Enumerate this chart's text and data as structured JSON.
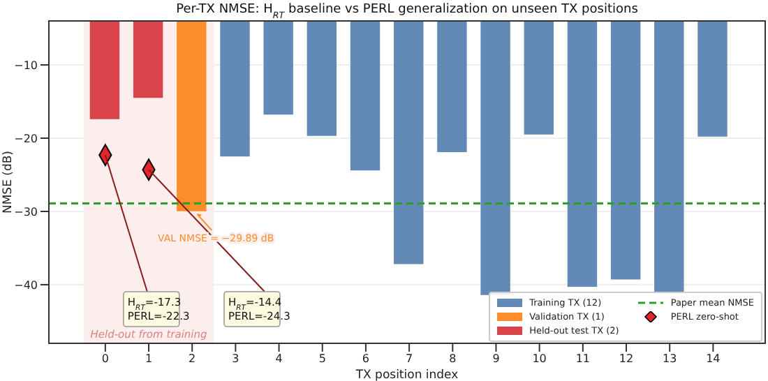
{
  "chart_data": {
    "type": "bar",
    "title": "Per-TX NMSE: H$_{RT}$ baseline vs PERL generalization on unseen TX positions",
    "xlabel": "TX position index",
    "ylabel": "NMSE (dB)",
    "x": [
      0,
      1,
      2,
      3,
      4,
      5,
      6,
      7,
      8,
      9,
      10,
      11,
      12,
      13,
      14
    ],
    "series": [
      {
        "name": "Training TX (12)",
        "color": "#6389b7",
        "values": [
          null,
          null,
          null,
          -22.4,
          -16.7,
          -19.6,
          -24.3,
          -37.1,
          -21.8,
          -41.3,
          -19.4,
          -40.2,
          -39.2,
          -40.9,
          -19.7
        ]
      },
      {
        "name": "Validation TX (1)",
        "color": "#fd8d2b",
        "values": [
          null,
          null,
          -29.89,
          null,
          null,
          null,
          null,
          null,
          null,
          null,
          null,
          null,
          null,
          null,
          null
        ]
      },
      {
        "name": "Held-out test TX (2)",
        "color": "#d9434a",
        "values": [
          -17.3,
          -14.4,
          null,
          null,
          null,
          null,
          null,
          null,
          null,
          null,
          null,
          null,
          null,
          null,
          null
        ]
      },
      {
        "name": "PERL zero-shot",
        "type": "scatter",
        "x": [
          0,
          1
        ],
        "values": [
          -22.3,
          -24.3
        ],
        "color": "#e3242b",
        "marker": "diamond"
      }
    ],
    "xlim": [
      -1.3,
      15.2
    ],
    "xticks": [
      0,
      1,
      2,
      3,
      4,
      5,
      6,
      7,
      8,
      9,
      10,
      11,
      12,
      13,
      14
    ],
    "ylim": [
      -48,
      -4
    ],
    "yticks": [
      -10,
      -20,
      -30,
      -40
    ],
    "ref_lines": [
      {
        "axis": "y",
        "value": -28.9,
        "label": "Paper mean NMSE",
        "color": "#2ca02c",
        "line_style": "dashed"
      }
    ],
    "bands": [
      {
        "axis": "x",
        "from": -0.5,
        "to": 2.5,
        "label": "Held-out from training",
        "color": "#fdeeee"
      }
    ],
    "annotations": [
      {
        "text": "VAL NMSE = −29.89 dB",
        "x": 2,
        "y": -29.89
      },
      {
        "text": "H$_{RT}$=-17.3\nPERL=-22.3",
        "x": 0,
        "y": -22.3
      },
      {
        "text": "H$_{RT}$=-14.4\nPERL=-24.3",
        "x": 1,
        "y": -24.3
      }
    ],
    "grid": "y",
    "legend": "bottom right"
  }
}
